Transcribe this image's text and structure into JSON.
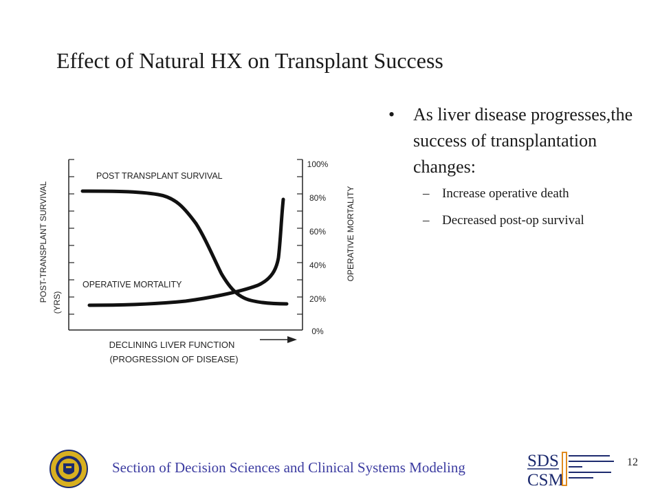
{
  "slide": {
    "title": "Effect of Natural HX on Transplant Success",
    "page_number": "12"
  },
  "bullets": {
    "main": "As liver disease progresses,the success of transplantation changes:",
    "sub": [
      "Increase operative death",
      "Decreased post-op survival"
    ]
  },
  "diagram": {
    "left_axis_label_line1": "POST-TRANSPLANT SURVIVAL",
    "left_axis_label_line2": "(YRS)",
    "right_axis_label": "OPERATIVE MORTALITY",
    "right_ticks": [
      "100%",
      "80%",
      "60%",
      "40%",
      "20%",
      "0%"
    ],
    "x_label_line1": "DECLINING LIVER FUNCTION",
    "x_label_line2": "(PROGRESSION OF DISEASE)",
    "curve_label_survival": "POST TRANSPLANT SURVIVAL",
    "curve_label_mortality": "OPERATIVE MORTALITY"
  },
  "footer": {
    "text": "Section of Decision Sciences and Clinical Systems Modeling",
    "logo_text_1": "SDS",
    "logo_text_2": "CSM"
  },
  "colors": {
    "footer_text": "#3b3ba0",
    "seal_gold": "#d8b020",
    "seal_navy": "#1c2a6e",
    "logo_orange": "#e08a1e"
  }
}
